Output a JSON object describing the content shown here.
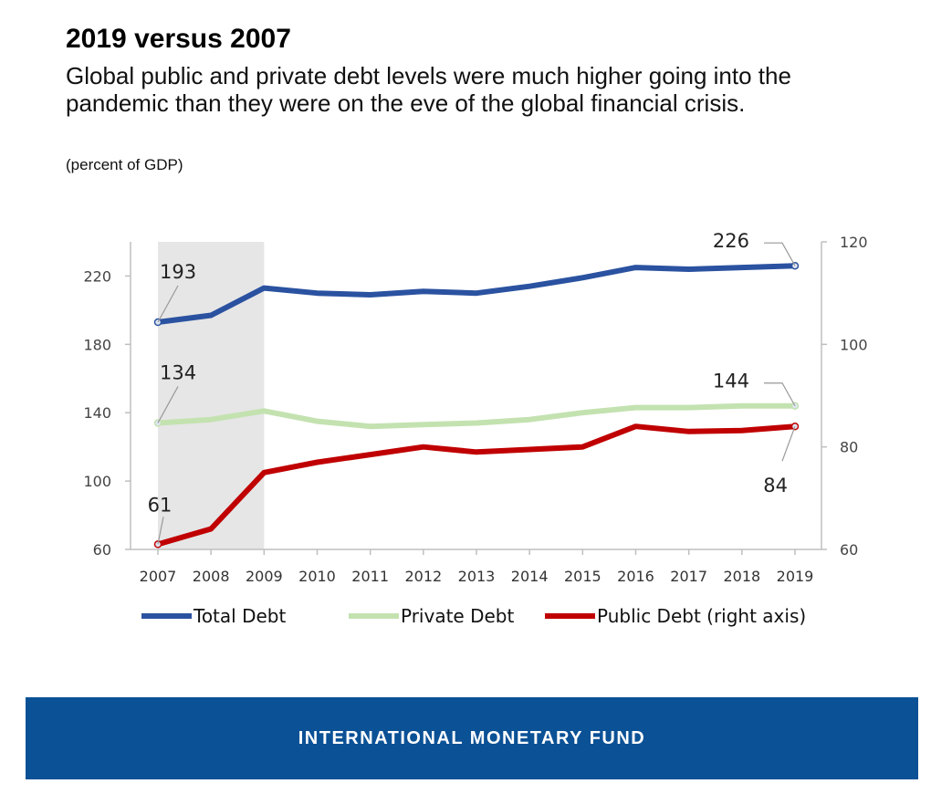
{
  "header": {
    "title": "2019 versus 2007",
    "subtitle": "Global public and private debt levels were much higher going into the pandemic than they were on the eve of the global financial crisis.",
    "unit": "(percent of GDP)"
  },
  "chart_data": {
    "type": "line",
    "x": [
      2007,
      2008,
      2009,
      2010,
      2011,
      2012,
      2013,
      2014,
      2015,
      2016,
      2017,
      2018,
      2019
    ],
    "left_axis": {
      "ticks": [
        60,
        100,
        140,
        180,
        220
      ],
      "range": [
        60,
        240
      ]
    },
    "right_axis": {
      "ticks": [
        60,
        80,
        100,
        120
      ],
      "range": [
        60,
        120
      ]
    },
    "shaded_period": [
      2007,
      2009
    ],
    "series": [
      {
        "name": "Total Debt",
        "axis": "left",
        "color": "#2a52a0",
        "values": [
          193,
          197,
          213,
          210,
          209,
          211,
          210,
          214,
          219,
          225,
          224,
          225,
          226
        ],
        "labels": [
          {
            "index": 0,
            "text": "193",
            "position": "above-right"
          },
          {
            "index": 12,
            "text": "226",
            "position": "above-left"
          }
        ]
      },
      {
        "name": "Private Debt",
        "axis": "left",
        "color": "#c3e2b0",
        "values": [
          134,
          136,
          141,
          135,
          132,
          133,
          134,
          136,
          140,
          143,
          143,
          144,
          144
        ],
        "labels": [
          {
            "index": 0,
            "text": "134",
            "position": "above-right"
          },
          {
            "index": 12,
            "text": "144",
            "position": "above-left"
          }
        ]
      },
      {
        "name": "Public Debt (right axis)",
        "axis": "right",
        "color": "#c00000",
        "values": [
          61,
          64,
          75,
          77,
          78.5,
          80,
          79,
          79.5,
          80,
          84,
          83,
          83.2,
          84
        ],
        "labels": [
          {
            "index": 0,
            "text": "61",
            "position": "above"
          },
          {
            "index": 12,
            "text": "84",
            "position": "below-left"
          }
        ]
      }
    ]
  },
  "footer": {
    "text": "INTERNATIONAL MONETARY FUND"
  }
}
